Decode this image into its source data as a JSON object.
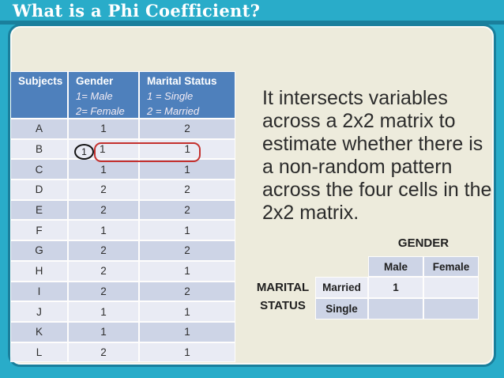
{
  "slide": {
    "title": "What is a Phi Coefficient?",
    "paragraph": "It intersects variables\nacross a 2x2 matrix to\nestimate whether there is\na non-random pattern\nacross the four cells in the\n2x2 matrix."
  },
  "subjects_table": {
    "headers": [
      {
        "title": "Subjects",
        "legend": ""
      },
      {
        "title": "Gender",
        "legend": "1= Male\n2= Female"
      },
      {
        "title": "Marital Status",
        "legend": "1 = Single\n2 = Married"
      }
    ],
    "rows": [
      {
        "subject": "A",
        "gender": "1",
        "marital": "2"
      },
      {
        "subject": "B",
        "gender": "1",
        "marital": "1",
        "annotated": true,
        "circle_label": "1"
      },
      {
        "subject": "C",
        "gender": "1",
        "marital": "1"
      },
      {
        "subject": "D",
        "gender": "2",
        "marital": "2"
      },
      {
        "subject": "E",
        "gender": "2",
        "marital": "2"
      },
      {
        "subject": "F",
        "gender": "1",
        "marital": "1"
      },
      {
        "subject": "G",
        "gender": "2",
        "marital": "2"
      },
      {
        "subject": "H",
        "gender": "2",
        "marital": "1"
      },
      {
        "subject": "I",
        "gender": "2",
        "marital": "2"
      },
      {
        "subject": "J",
        "gender": "1",
        "marital": "1"
      },
      {
        "subject": "K",
        "gender": "1",
        "marital": "1"
      },
      {
        "subject": "L",
        "gender": "2",
        "marital": "1"
      }
    ]
  },
  "matrix": {
    "col_group_label": "GENDER",
    "row_group_label": "MARITAL\nSTATUS",
    "col_headers": [
      "Male",
      "Female"
    ],
    "row_headers": [
      "Married",
      "Single"
    ],
    "cells": [
      [
        "1",
        ""
      ],
      [
        "",
        ""
      ]
    ]
  },
  "colors": {
    "background_teal": "#29ACC9",
    "border_teal_dark": "#1A7F9C",
    "panel_cream": "#EDEBDC",
    "table_header_blue": "#4E80BC",
    "band_dark": "#CDD4E6",
    "band_light": "#E9EBF4",
    "annotation_red": "#C4312E",
    "text_dark": "#2D2D2D"
  }
}
